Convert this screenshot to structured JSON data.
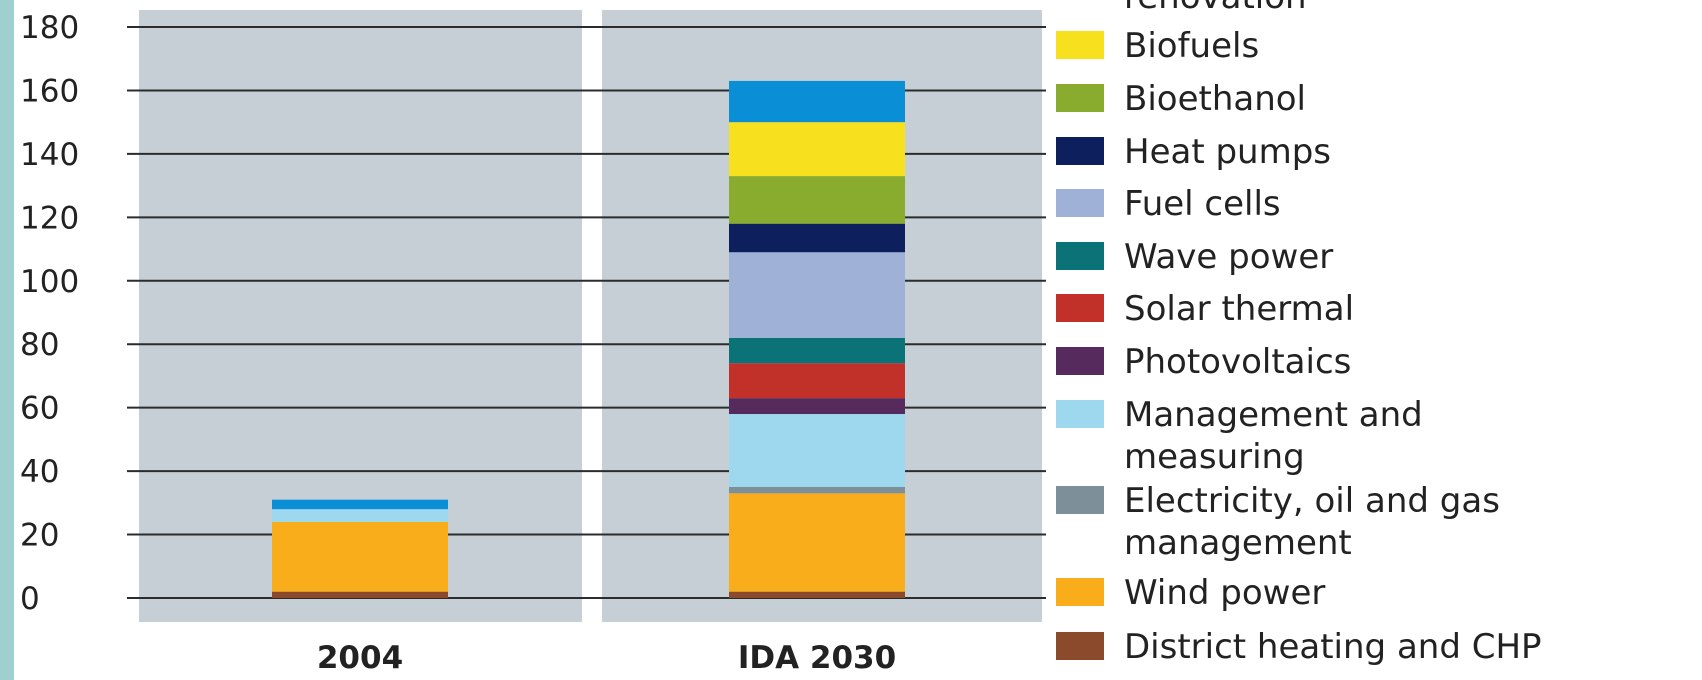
{
  "chart_data": {
    "type": "bar",
    "stacked": true,
    "categories": [
      "2004",
      "IDA 2030"
    ],
    "ylim": [
      0,
      180
    ],
    "yticks": [
      "0",
      "20",
      "40",
      "60",
      "80",
      "100",
      "120",
      "140",
      "160",
      "180"
    ],
    "grid": true,
    "legend_position": "right",
    "series": [
      {
        "name": "District heating and CHP",
        "color": "#8b4a2b",
        "values": [
          2,
          2
        ]
      },
      {
        "name": "Wind power",
        "color": "#f9ad1a",
        "values": [
          22,
          31
        ]
      },
      {
        "name": "Electricity, oil and gas management",
        "color": "#7d8f99",
        "values": [
          0,
          2
        ]
      },
      {
        "name": "Management and measuring",
        "color": "#9ed8ee",
        "values": [
          4,
          23
        ]
      },
      {
        "name": "Photovoltaics",
        "color": "#562a5c",
        "values": [
          0,
          5
        ]
      },
      {
        "name": "Solar thermal",
        "color": "#c2302a",
        "values": [
          0,
          11
        ]
      },
      {
        "name": "Wave power",
        "color": "#0b7278",
        "values": [
          0,
          8
        ]
      },
      {
        "name": "Fuel cells",
        "color": "#9fb1d6",
        "values": [
          0,
          27
        ]
      },
      {
        "name": "Heat pumps",
        "color": "#0d1f5c",
        "values": [
          0,
          9
        ]
      },
      {
        "name": "Bioethanol",
        "color": "#8aac2e",
        "values": [
          0,
          15
        ]
      },
      {
        "name": "Biofuels",
        "color": "#f7e01e",
        "values": [
          0,
          17
        ]
      },
      {
        "name": "renovation",
        "color": "#0a8fd6",
        "values": [
          3,
          13
        ]
      }
    ]
  }
}
